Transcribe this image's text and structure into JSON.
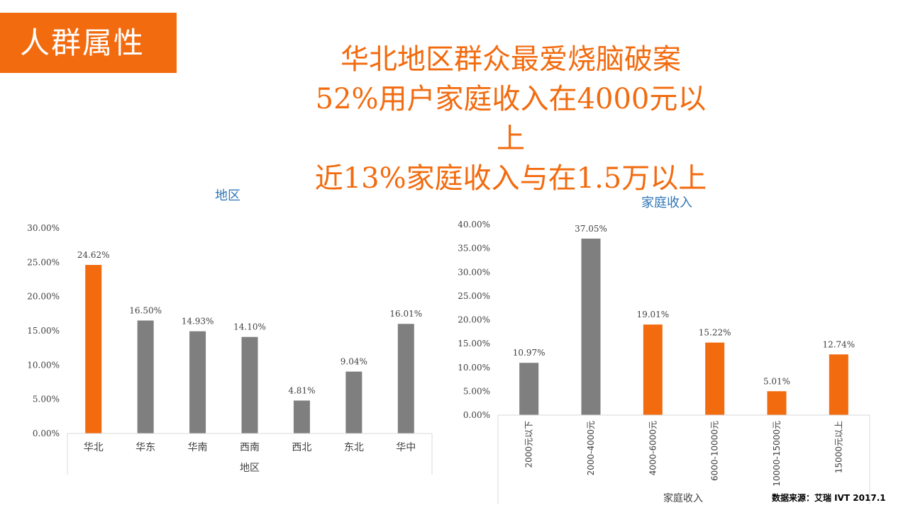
{
  "section_tag": "人群属性",
  "headline": [
    "华北地区群众最爱烧脑破案",
    "52%用户家庭收入在4000元以",
    "上",
    "近13%家庭收入与在1.5万以上"
  ],
  "source": "数据来源：艾瑞 IVT  2017.1",
  "colors": {
    "accent": "#f26b0f",
    "gray": "#7f7f7f",
    "title_blue": "#2e75b6"
  },
  "chart_data": [
    {
      "type": "bar",
      "title": "地区",
      "xlabel": "地区",
      "ylabel": "",
      "categories": [
        "华北",
        "华东",
        "华南",
        "西南",
        "西北",
        "东北",
        "华中"
      ],
      "values": [
        24.62,
        16.5,
        14.93,
        14.1,
        4.81,
        9.04,
        16.01
      ],
      "value_labels": [
        "24.62%",
        "16.50%",
        "14.93%",
        "14.10%",
        "4.81%",
        "9.04%",
        "16.01%"
      ],
      "bar_colors": [
        "#f26b0f",
        "#7f7f7f",
        "#7f7f7f",
        "#7f7f7f",
        "#7f7f7f",
        "#7f7f7f",
        "#7f7f7f"
      ],
      "ylim": [
        0,
        30
      ],
      "yticks": [
        "0.00%",
        "5.00%",
        "10.00%",
        "15.00%",
        "20.00%",
        "25.00%",
        "30.00%"
      ],
      "grid": false
    },
    {
      "type": "bar",
      "title": "家庭收入",
      "xlabel": "家庭收入",
      "ylabel": "",
      "categories": [
        "2000元以下",
        "2000-4000元",
        "4000-6000元",
        "6000-10000元",
        "10000-15000元",
        "15000元以上"
      ],
      "values": [
        10.97,
        37.05,
        19.01,
        15.22,
        5.01,
        12.74
      ],
      "value_labels": [
        "10.97%",
        "37.05%",
        "19.01%",
        "15.22%",
        "5.01%",
        "12.74%"
      ],
      "bar_colors": [
        "#7f7f7f",
        "#7f7f7f",
        "#f26b0f",
        "#f26b0f",
        "#f26b0f",
        "#f26b0f"
      ],
      "ylim": [
        0,
        40
      ],
      "yticks": [
        "0.00%",
        "5.00%",
        "10.00%",
        "15.00%",
        "20.00%",
        "25.00%",
        "30.00%",
        "35.00%",
        "40.00%"
      ],
      "grid": false
    }
  ]
}
